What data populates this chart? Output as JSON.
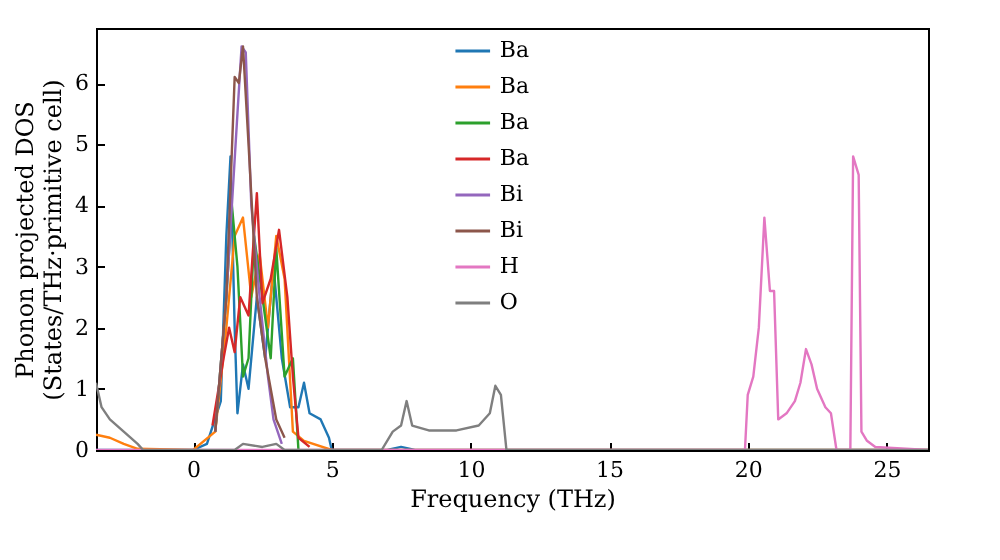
{
  "chart_data": {
    "type": "line",
    "xlabel": "Frequency (THz)",
    "ylabel": "Phonon projected DOS\n(States/THz·primitive cell)",
    "xlim": [
      -3.5,
      26.5
    ],
    "ylim": [
      0,
      6.9
    ],
    "xticks": [
      0,
      5,
      10,
      15,
      20,
      25
    ],
    "yticks": [
      0,
      1,
      2,
      3,
      4,
      5,
      6
    ],
    "grid": false,
    "legend": "top",
    "series": [
      {
        "name": "Ba",
        "color": "#1f77b4",
        "x": [
          -3.5,
          0,
          0.5,
          1,
          1.2,
          1.35,
          1.5,
          1.6,
          1.8,
          2.0,
          2.3,
          2.6,
          2.9,
          3.2,
          3.5,
          3.8,
          4.0,
          4.2,
          4.6,
          4.9,
          5.0,
          7,
          7.5,
          8,
          26.5
        ],
        "values": [
          0,
          0,
          0.1,
          0.8,
          3.5,
          4.8,
          2,
          0.6,
          1.4,
          1.0,
          2.5,
          1.5,
          3,
          1.5,
          0.7,
          0.7,
          1.1,
          0.6,
          0.5,
          0.2,
          0,
          0,
          0.05,
          0,
          0
        ]
      },
      {
        "name": "Ba",
        "color": "#ff7f0e",
        "x": [
          -3.5,
          -3,
          -2.5,
          -2,
          0,
          0.8,
          1.2,
          1.5,
          1.8,
          2.1,
          2.4,
          2.7,
          3,
          3.3,
          3.6,
          4,
          5,
          26.5
        ],
        "values": [
          0.25,
          0.2,
          0.1,
          0.02,
          0,
          0.3,
          2,
          3.5,
          3.8,
          2.5,
          3.2,
          2,
          3.5,
          2.8,
          0.3,
          0.15,
          0,
          0
        ]
      },
      {
        "name": "Ba",
        "color": "#2ca02c",
        "x": [
          0.8,
          1.2,
          1.4,
          1.6,
          1.8,
          2.0,
          2.2,
          2.5,
          2.8,
          3.0,
          3.3,
          3.6,
          3.8
        ],
        "values": [
          0.3,
          2.5,
          4.0,
          3.0,
          1.2,
          1.5,
          3.5,
          2.5,
          1.5,
          3.3,
          1.2,
          1.5,
          0
        ]
      },
      {
        "name": "Ba",
        "color": "#d62728",
        "x": [
          0.7,
          1.1,
          1.3,
          1.5,
          1.7,
          2.0,
          2.3,
          2.5,
          2.8,
          3.1,
          3.4,
          3.6,
          3.8,
          4.2
        ],
        "values": [
          0.4,
          1.5,
          2.0,
          1.6,
          2.5,
          2.2,
          4.2,
          2.4,
          2.8,
          3.6,
          2.5,
          1.2,
          0.2,
          0.05
        ]
      },
      {
        "name": "Bi",
        "color": "#9467bd",
        "x": [
          0.8,
          1.2,
          1.6,
          1.75,
          1.9,
          2.1,
          2.4,
          2.7,
          2.9,
          3.2
        ],
        "values": [
          0.3,
          2.5,
          5.5,
          6.6,
          6.5,
          4,
          2.5,
          1.2,
          0.5,
          0.1
        ]
      },
      {
        "name": "Bi",
        "color": "#8c564b",
        "x": [
          0.8,
          1.2,
          1.5,
          1.65,
          1.8,
          2.0,
          2.3,
          2.6,
          3.0,
          3.3
        ],
        "values": [
          0.3,
          2.5,
          6.1,
          6.0,
          6.6,
          5.0,
          2.5,
          1.5,
          0.5,
          0.2
        ]
      },
      {
        "name": "H",
        "color": "#e377c2",
        "x": [
          -3.5,
          19.9,
          20.0,
          20.2,
          20.4,
          20.6,
          20.8,
          20.95,
          21.1,
          21.4,
          21.7,
          21.9,
          22.1,
          22.3,
          22.5,
          22.8,
          23.0,
          23.2,
          23.7,
          23.8,
          24.0,
          24.1,
          24.3,
          24.6,
          26.5
        ],
        "values": [
          0,
          0,
          0.9,
          1.2,
          2.0,
          3.8,
          2.6,
          2.6,
          0.5,
          0.6,
          0.8,
          1.1,
          1.65,
          1.4,
          1.0,
          0.7,
          0.6,
          0,
          0,
          4.8,
          4.5,
          0.3,
          0.15,
          0.05,
          0
        ]
      },
      {
        "name": "O",
        "color": "#7f7f7f",
        "x": [
          -3.5,
          -3.3,
          -3.0,
          -2.5,
          -2.0,
          -1.8,
          1.5,
          1.8,
          2.5,
          3,
          3.3,
          6.8,
          7.2,
          7.5,
          7.7,
          7.9,
          8.5,
          9.5,
          10.3,
          10.7,
          10.9,
          11.1,
          11.3,
          26.5
        ],
        "values": [
          1.1,
          0.7,
          0.5,
          0.3,
          0.1,
          0,
          0,
          0.1,
          0.05,
          0.1,
          0,
          0,
          0.3,
          0.4,
          0.8,
          0.4,
          0.32,
          0.32,
          0.4,
          0.6,
          1.05,
          0.9,
          0,
          0
        ]
      }
    ]
  }
}
